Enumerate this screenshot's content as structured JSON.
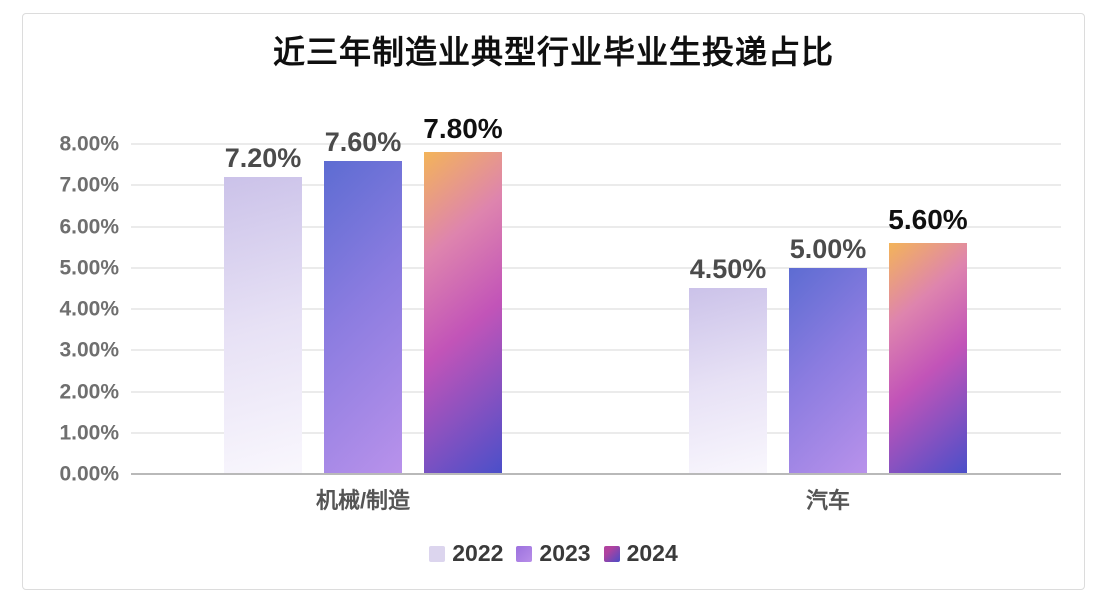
{
  "card": {
    "background": "#ffffff",
    "border_color": "#dcdcdc"
  },
  "chart_data": {
    "type": "bar",
    "title": "近三年制造业典型行业毕业生投递占比",
    "categories": [
      "机械/制造",
      "汽车"
    ],
    "series": [
      {
        "name": "2022",
        "values": [
          7.2,
          4.5
        ],
        "labels": [
          "7.20%",
          "4.50%"
        ],
        "gradient": [
          "#cbc2e9",
          "#f9f7fd"
        ],
        "legend_swatch": "#dcd5ee"
      },
      {
        "name": "2023",
        "values": [
          7.6,
          5.0
        ],
        "labels": [
          "7.60%",
          "5.00%"
        ],
        "gradient": [
          "#5d6cd2",
          "#b992eb"
        ],
        "legend_swatch": "#a57ce2"
      },
      {
        "name": "2024",
        "values": [
          7.8,
          5.6
        ],
        "labels": [
          "7.80%",
          "5.60%"
        ],
        "gradient": [
          "#f3b459",
          "#c254b8",
          "#4a4fc9"
        ],
        "legend_swatch": "#8e48b5"
      }
    ],
    "xlabel": "",
    "ylabel": "",
    "ylim": [
      0,
      8
    ],
    "yticks": [
      "0.00%",
      "1.00%",
      "2.00%",
      "3.00%",
      "4.00%",
      "5.00%",
      "6.00%",
      "7.00%",
      "8.00%"
    ],
    "grid": true,
    "legend_position": "bottom",
    "tick_label_color": "#6f6f6f",
    "gridline_color": "#ebebeb",
    "baseline_color": "#b9b9b9"
  }
}
